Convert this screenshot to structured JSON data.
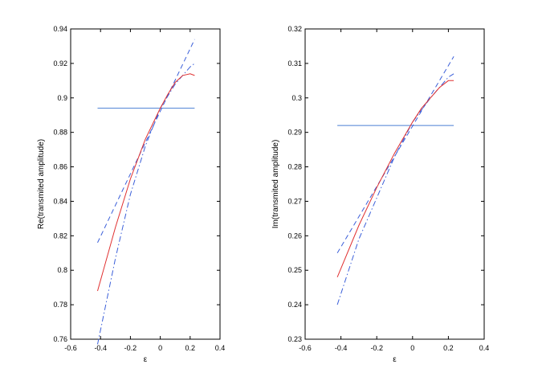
{
  "chart_data": [
    {
      "type": "line",
      "xlabel": "ε",
      "ylabel": "Re(transmited amplitude)",
      "xlim": [
        -0.6,
        0.4
      ],
      "ylim": [
        0.76,
        0.94
      ],
      "xticks": [
        "-0.6",
        "-0.4",
        "-0.2",
        "0",
        "0.2",
        "0.4"
      ],
      "yticks": [
        "0.76",
        "0.78",
        "0.8",
        "0.82",
        "0.84",
        "0.86",
        "0.88",
        "0.9",
        "0.92",
        "0.94"
      ],
      "xtick_values": [
        -0.6,
        -0.4,
        -0.2,
        0,
        0.2,
        0.4
      ],
      "ytick_values": [
        0.76,
        0.78,
        0.8,
        0.82,
        0.84,
        0.86,
        0.88,
        0.9,
        0.92,
        0.94
      ],
      "grid": false,
      "series": [
        {
          "style": "solid",
          "color": "#4a7fd4",
          "x": [
            -0.42,
            0.23
          ],
          "y": [
            0.894,
            0.894
          ]
        },
        {
          "style": "dashed",
          "color": "#3b5fd9",
          "x": [
            -0.42,
            0.23
          ],
          "y": [
            0.816,
            0.934
          ]
        },
        {
          "style": "dashdot",
          "color": "#3b5fd9",
          "x": [
            -0.42,
            -0.3,
            -0.2,
            -0.1,
            0.0,
            0.1,
            0.2,
            0.23
          ],
          "y": [
            0.757,
            0.807,
            0.844,
            0.872,
            0.894,
            0.908,
            0.918,
            0.92
          ]
        },
        {
          "style": "solid",
          "color": "#e03030",
          "x": [
            -0.42,
            -0.3,
            -0.2,
            -0.1,
            0.0,
            0.05,
            0.1,
            0.15,
            0.2,
            0.23
          ],
          "y": [
            0.788,
            0.825,
            0.853,
            0.876,
            0.894,
            0.902,
            0.909,
            0.913,
            0.914,
            0.913
          ]
        }
      ]
    },
    {
      "type": "line",
      "xlabel": "ε",
      "ylabel": "Im(transmited amplitude)",
      "xlim": [
        -0.6,
        0.4
      ],
      "ylim": [
        0.23,
        0.32
      ],
      "xticks": [
        "-0.6",
        "-0.4",
        "-0.2",
        "0",
        "0.2",
        "0.4"
      ],
      "yticks": [
        "0.23",
        "0.24",
        "0.25",
        "0.26",
        "0.27",
        "0.28",
        "0.29",
        "0.3",
        "0.31",
        "0.32"
      ],
      "xtick_values": [
        -0.6,
        -0.4,
        -0.2,
        0,
        0.2,
        0.4
      ],
      "ytick_values": [
        0.23,
        0.24,
        0.25,
        0.26,
        0.27,
        0.28,
        0.29,
        0.3,
        0.31,
        0.32
      ],
      "grid": false,
      "series": [
        {
          "style": "solid",
          "color": "#4a7fd4",
          "x": [
            -0.42,
            0.23
          ],
          "y": [
            0.292,
            0.292
          ]
        },
        {
          "style": "dashed",
          "color": "#3b5fd9",
          "x": [
            -0.42,
            0.23
          ],
          "y": [
            0.255,
            0.312
          ]
        },
        {
          "style": "dashdot",
          "color": "#3b5fd9",
          "x": [
            -0.42,
            -0.3,
            -0.2,
            -0.1,
            0.0,
            0.1,
            0.2,
            0.23
          ],
          "y": [
            0.24,
            0.259,
            0.271,
            0.283,
            0.293,
            0.3,
            0.306,
            0.307
          ]
        },
        {
          "style": "solid",
          "color": "#e03030",
          "x": [
            -0.42,
            -0.3,
            -0.2,
            -0.1,
            0.0,
            0.05,
            0.1,
            0.15,
            0.2,
            0.23
          ],
          "y": [
            0.248,
            0.263,
            0.274,
            0.284,
            0.293,
            0.297,
            0.3,
            0.303,
            0.305,
            0.305
          ]
        }
      ]
    }
  ]
}
